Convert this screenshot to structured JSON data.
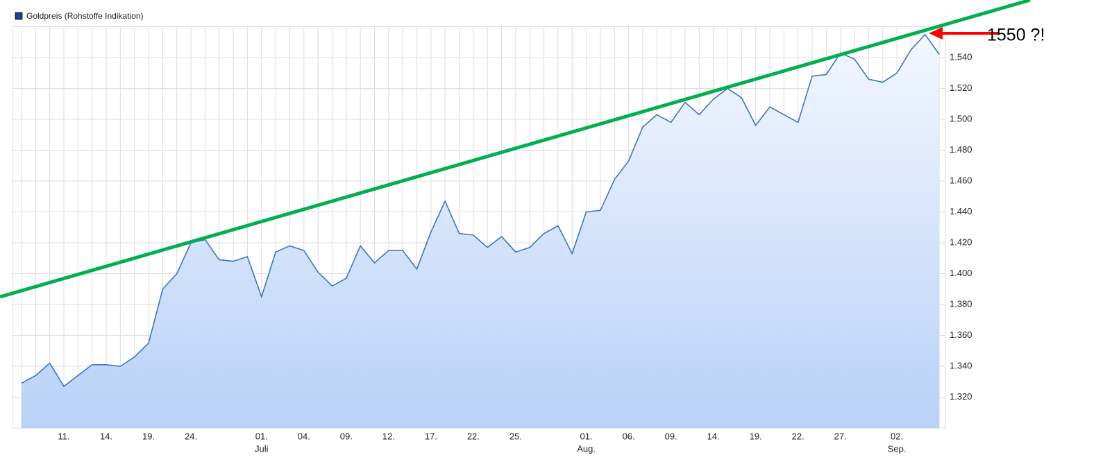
{
  "chart_data": {
    "type": "area",
    "legend": "Goldpreis (Rohstoffe Indikation)",
    "legend_color": "#1f3f9a",
    "annotation": "1550 ?!",
    "categories": [
      null,
      null,
      null,
      "11.",
      null,
      null,
      "14.",
      null,
      null,
      "19.",
      null,
      null,
      "24.",
      null,
      null,
      null,
      null,
      "01.",
      null,
      null,
      "04.",
      null,
      null,
      "09.",
      null,
      null,
      "12.",
      null,
      null,
      "17.",
      null,
      null,
      "22.",
      null,
      null,
      "25.",
      null,
      null,
      null,
      null,
      "01.",
      null,
      null,
      "06.",
      null,
      null,
      "09.",
      null,
      null,
      "14.",
      null,
      null,
      "19.",
      null,
      null,
      "22.",
      null,
      null,
      "27.",
      null,
      null,
      null,
      "02.",
      null,
      null,
      null
    ],
    "months": [
      null,
      null,
      null,
      null,
      null,
      null,
      null,
      null,
      null,
      null,
      null,
      null,
      null,
      null,
      null,
      null,
      null,
      "Juli",
      null,
      null,
      null,
      null,
      null,
      null,
      null,
      null,
      null,
      null,
      null,
      null,
      null,
      null,
      null,
      null,
      null,
      null,
      null,
      null,
      null,
      null,
      "Aug.",
      null,
      null,
      null,
      null,
      null,
      null,
      null,
      null,
      null,
      null,
      null,
      null,
      null,
      null,
      null,
      null,
      null,
      null,
      null,
      null,
      null,
      "Sep.",
      null,
      null,
      null
    ],
    "series": [
      {
        "name": "Goldpreis (Rohstoffe Indikation)",
        "color": "#3b73c9",
        "values": [
          1329,
          1334,
          1342,
          1327,
          1334,
          1341,
          1341,
          1340,
          1346,
          1355,
          1390,
          1400,
          1420,
          1422,
          1409,
          1408,
          1411,
          1385,
          1414,
          1418,
          1415,
          1401,
          1392,
          1397,
          1418,
          1407,
          1415,
          1415,
          1403,
          1427,
          1447,
          1426,
          1425,
          1417,
          1424,
          1414,
          1417,
          1426,
          1431,
          1413,
          1440,
          1441,
          1461,
          1473,
          1495,
          1503,
          1498,
          1511,
          1503,
          1513,
          1520,
          1514,
          1496,
          1508,
          1503,
          1498,
          1528,
          1529,
          1543,
          1539,
          1526,
          1524,
          1530,
          1545,
          1555,
          1542
        ]
      }
    ],
    "ylim": [
      1300,
      1560
    ],
    "yticks": [
      {
        "value": 1320,
        "label": "1.320"
      },
      {
        "value": 1340,
        "label": "1.340"
      },
      {
        "value": 1360,
        "label": "1.360"
      },
      {
        "value": 1380,
        "label": "1.380"
      },
      {
        "value": 1400,
        "label": "1.400"
      },
      {
        "value": 1420,
        "label": "1.420"
      },
      {
        "value": 1440,
        "label": "1.440"
      },
      {
        "value": 1460,
        "label": "1.460"
      },
      {
        "value": 1480,
        "label": "1.480"
      },
      {
        "value": 1500,
        "label": "1.500"
      },
      {
        "value": 1520,
        "label": "1.520"
      },
      {
        "value": 1540,
        "label": "1.540"
      }
    ],
    "grid": true
  }
}
